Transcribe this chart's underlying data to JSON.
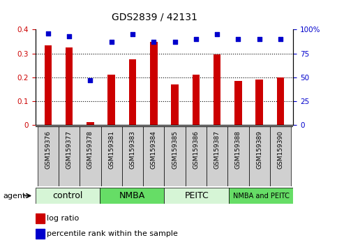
{
  "title": "GDS2839 / 42131",
  "samples": [
    "GSM159376",
    "GSM159377",
    "GSM159378",
    "GSM159381",
    "GSM159383",
    "GSM159384",
    "GSM159385",
    "GSM159386",
    "GSM159387",
    "GSM159388",
    "GSM159389",
    "GSM159390"
  ],
  "log_ratio": [
    0.335,
    0.325,
    0.01,
    0.21,
    0.275,
    0.35,
    0.17,
    0.21,
    0.295,
    0.185,
    0.19,
    0.2
  ],
  "percentile_rank": [
    96,
    93,
    47,
    87,
    95,
    87,
    87,
    90,
    95,
    90,
    90,
    90
  ],
  "groups": [
    {
      "label": "control",
      "start": 0,
      "end": 3,
      "color": "#d6f5d6"
    },
    {
      "label": "NMBA",
      "start": 3,
      "end": 6,
      "color": "#66dd66"
    },
    {
      "label": "PEITC",
      "start": 6,
      "end": 9,
      "color": "#d6f5d6"
    },
    {
      "label": "NMBA and PEITC",
      "start": 9,
      "end": 12,
      "color": "#66dd66"
    }
  ],
  "bar_color": "#cc0000",
  "scatter_color": "#0000cc",
  "ylim_left": [
    0,
    0.4
  ],
  "ylim_right": [
    0,
    100
  ],
  "yticks_left": [
    0,
    0.1,
    0.2,
    0.3,
    0.4
  ],
  "yticks_right": [
    0,
    25,
    50,
    75,
    100
  ],
  "yticklabels_right": [
    "0",
    "25",
    "50",
    "75",
    "100%"
  ],
  "yticklabels_left": [
    "0",
    "0.1",
    "0.2",
    "0.3",
    "0.4"
  ],
  "dotted_lines": [
    0.1,
    0.2,
    0.3
  ],
  "xtick_bg": "#d8d8d8",
  "group_font_sizes": [
    9,
    9,
    9,
    7
  ],
  "bar_width": 0.35
}
